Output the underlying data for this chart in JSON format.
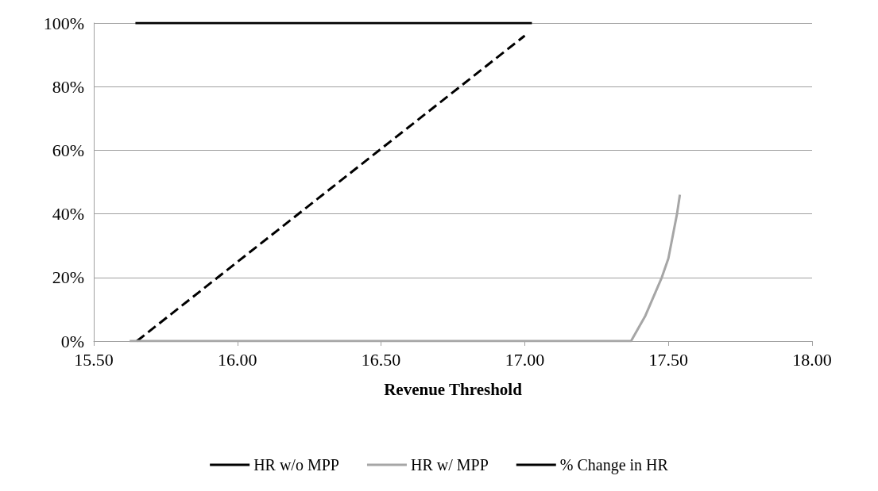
{
  "chart_data": {
    "type": "line",
    "xlabel": "Revenue Threshold",
    "xlim": [
      15.5,
      18
    ],
    "xticks": [
      {
        "value": 15.5,
        "label": "15.50"
      },
      {
        "value": 16,
        "label": "16.00"
      },
      {
        "value": 16.5,
        "label": "16.50"
      },
      {
        "value": 17,
        "label": "17.00"
      },
      {
        "value": 17.5,
        "label": "17.50"
      },
      {
        "value": 18,
        "label": "18.00"
      }
    ],
    "ylim": [
      0,
      100
    ],
    "yticks": [
      {
        "value": 0,
        "label": "0%"
      },
      {
        "value": 20,
        "label": "20%"
      },
      {
        "value": 40,
        "label": "40%"
      },
      {
        "value": 60,
        "label": "60%"
      },
      {
        "value": 80,
        "label": "80%"
      },
      {
        "value": 100,
        "label": "100%"
      }
    ],
    "grid": "y",
    "legend": "bottom",
    "marker": "none",
    "series": [
      {
        "name": "HR w/o MPP",
        "color": "#000000",
        "line_style": "dashed",
        "x": [
          15.65,
          17.0
        ],
        "values": [
          0,
          96
        ]
      },
      {
        "name": "HR w/ MPP",
        "color": "#a6a6a6",
        "line_style": "solid",
        "x": [
          15.625,
          17.37,
          17.42,
          17.477,
          17.5,
          17.53,
          17.54
        ],
        "values": [
          0,
          0,
          8,
          20,
          26,
          40,
          46
        ]
      },
      {
        "name": "% Change in HR",
        "color": "#000000",
        "line_style": "solid",
        "x": [
          15.645,
          17.025
        ],
        "values": [
          100,
          100
        ]
      }
    ]
  }
}
